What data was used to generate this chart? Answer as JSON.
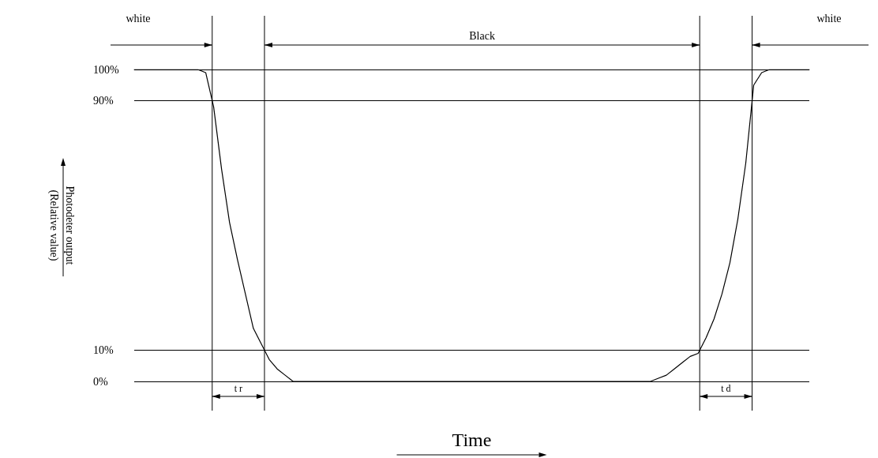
{
  "chart_data": {
    "type": "line",
    "xlabel": "Time",
    "ylabel": "Photodeter output\n(Relative value)",
    "categories": [
      null,
      null,
      null,
      null,
      null,
      null,
      null,
      null,
      null,
      null,
      null,
      null,
      null,
      null,
      null,
      null,
      null,
      null,
      null,
      null,
      null,
      null,
      null,
      null,
      null,
      null,
      null,
      null,
      null,
      null,
      null,
      null,
      null,
      null,
      null,
      null,
      null,
      null,
      null,
      null,
      null,
      null,
      null,
      null,
      null,
      null,
      null,
      null,
      null,
      null,
      null,
      null,
      null,
      null,
      null,
      null,
      null,
      null,
      null,
      null,
      null,
      null,
      null,
      null,
      null,
      null,
      null,
      null,
      null,
      null,
      null,
      null,
      null,
      null,
      null,
      null,
      null,
      null,
      null,
      null,
      null,
      null,
      null,
      null,
      null,
      null
    ],
    "series": [
      {
        "color": "#000000",
        "values": [
          100,
          100,
          100,
          100,
          100,
          100,
          100,
          100,
          100,
          99,
          88,
          68,
          51,
          39,
          28,
          17,
          12,
          7,
          4,
          2,
          0,
          0,
          0,
          0,
          0,
          0,
          0,
          0,
          0,
          0,
          0,
          0,
          0,
          0,
          0,
          0,
          0,
          0,
          0,
          0,
          0,
          0,
          0,
          0,
          0,
          0,
          0,
          0,
          0,
          0,
          0,
          0,
          0,
          0,
          0,
          0,
          0,
          0,
          0,
          0,
          0,
          0,
          0,
          0,
          0,
          0,
          1,
          2,
          4,
          6,
          8,
          9,
          14,
          20,
          28,
          38,
          52,
          70,
          95,
          99,
          100,
          100,
          100,
          100,
          100,
          100
        ]
      }
    ],
    "ylim": [
      0,
      100
    ],
    "yticks": [
      {
        "value": 0,
        "label": "0%"
      },
      {
        "value": 10,
        "label": "10%"
      },
      {
        "value": 90,
        "label": "90%"
      },
      {
        "value": 100,
        "label": "100%"
      }
    ],
    "grid": "y",
    "marker": "none",
    "line_style": "solid",
    "annotations": [
      "white",
      "Black",
      "white",
      "t r",
      "t d"
    ]
  }
}
